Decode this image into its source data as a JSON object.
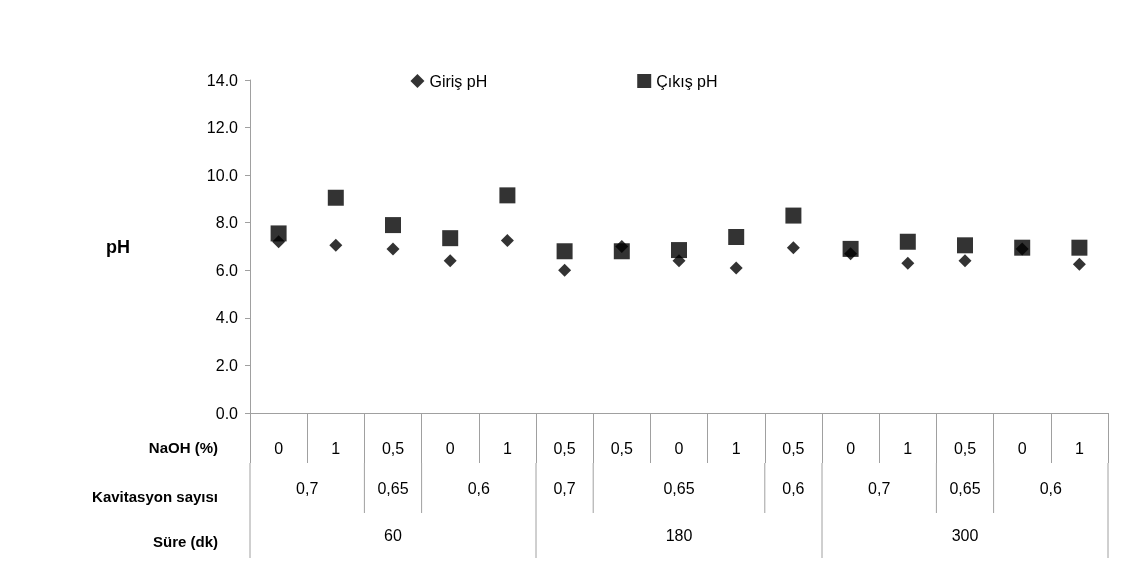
{
  "chart_data": {
    "type": "scatter",
    "categories": [
      "0",
      "1",
      "0,5",
      "0",
      "1",
      "0,5",
      "0,5",
      "0",
      "1",
      "0,5",
      "0",
      "1",
      "0,5",
      "0",
      "1"
    ],
    "series": [
      {
        "name": "Giriş pH",
        "color": "#000000",
        "marker": "diamond",
        "values": [
          7.2,
          7.05,
          6.9,
          6.4,
          7.25,
          6.0,
          7.0,
          6.4,
          6.1,
          6.95,
          6.7,
          6.3,
          6.4,
          6.9,
          6.25
        ]
      },
      {
        "name": "Çıkış pH",
        "color": "#000000",
        "marker": "square",
        "values": [
          7.55,
          9.05,
          7.9,
          7.35,
          9.15,
          6.8,
          6.8,
          6.85,
          7.4,
          8.3,
          6.9,
          7.2,
          7.05,
          6.95,
          6.95
        ]
      }
    ],
    "xlabel": "NaOH (%)",
    "ylabel": "pH",
    "ylim": [
      0,
      14
    ],
    "yticks": [
      {
        "value": 0,
        "label": "0.0"
      },
      {
        "value": 2,
        "label": "2.0"
      },
      {
        "value": 4,
        "label": "4.0"
      },
      {
        "value": 6,
        "label": "6.0"
      },
      {
        "value": 8,
        "label": "8.0"
      },
      {
        "value": 10,
        "label": "10.0"
      },
      {
        "value": 12,
        "label": "12.0"
      },
      {
        "value": 14,
        "label": "14.0"
      }
    ],
    "annotations": [
      "Kavitasyon sayısı",
      "0,7",
      "0,65",
      "0,6",
      "0,7",
      "0,65",
      "0,6",
      "0,7",
      "0,65",
      "0,6",
      "Süre (dk)",
      "60",
      "180",
      "300"
    ],
    "grid": false,
    "legend": "top"
  }
}
